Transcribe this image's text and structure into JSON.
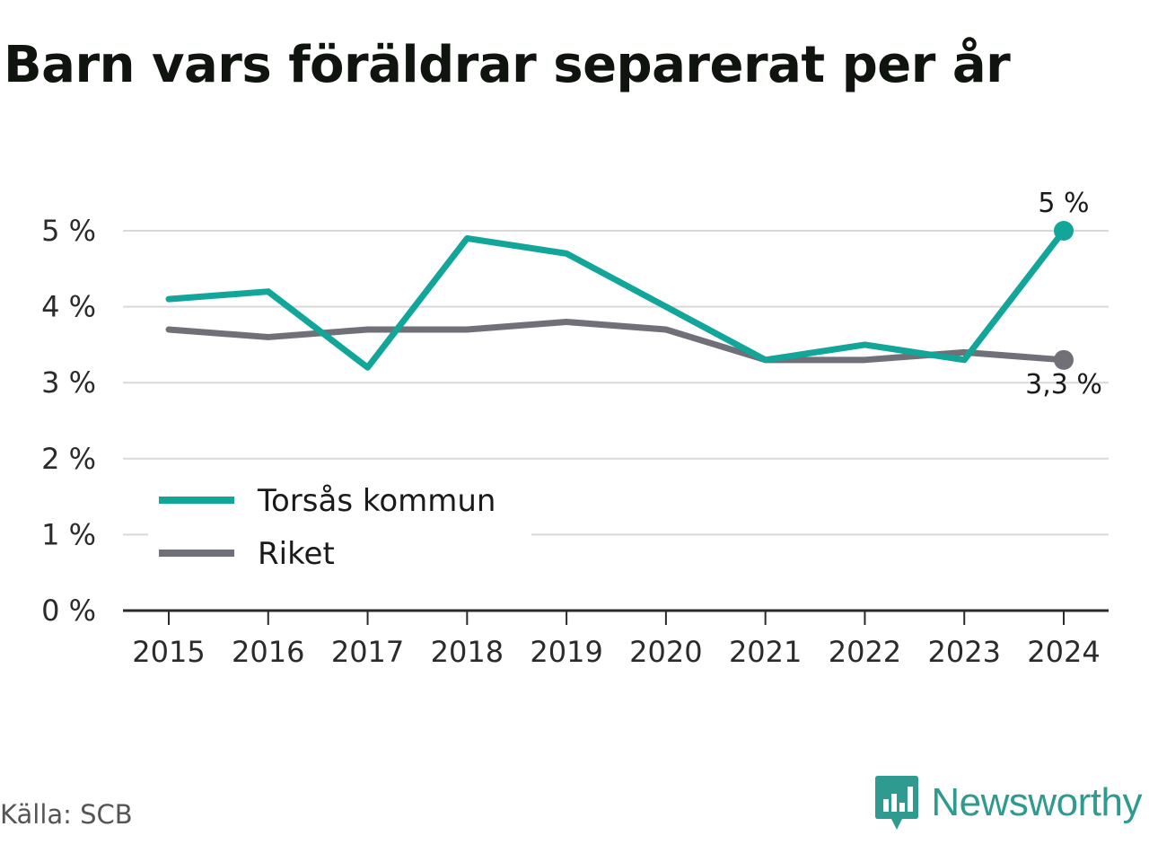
{
  "title": "Barn vars föräldrar separerat per år",
  "source": "Källa: SCB",
  "brand": {
    "name": "Newsworthy",
    "icon": "newsworthy-logo-icon",
    "color": "#2f9a8f"
  },
  "chart_data": {
    "type": "line",
    "categories": [
      "2015",
      "2016",
      "2017",
      "2018",
      "2019",
      "2020",
      "2021",
      "2022",
      "2023",
      "2024"
    ],
    "series": [
      {
        "name": "Torsås kommun",
        "color": "#12a59a",
        "values": [
          4.1,
          4.2,
          3.2,
          4.9,
          4.7,
          4.0,
          3.3,
          3.5,
          3.3,
          5.0
        ],
        "end_label": "5 %"
      },
      {
        "name": "Riket",
        "color": "#707078",
        "values": [
          3.7,
          3.6,
          3.7,
          3.7,
          3.8,
          3.7,
          3.3,
          3.3,
          3.4,
          3.3
        ],
        "end_label": "3,3 %"
      }
    ],
    "ylim": [
      0,
      5
    ],
    "yticks": [
      0,
      1,
      2,
      3,
      4,
      5
    ],
    "ytick_labels": [
      "0 %",
      "1 %",
      "2 %",
      "3 %",
      "4 %",
      "5 %"
    ],
    "grid": true,
    "legend_position": "bottom-left"
  }
}
